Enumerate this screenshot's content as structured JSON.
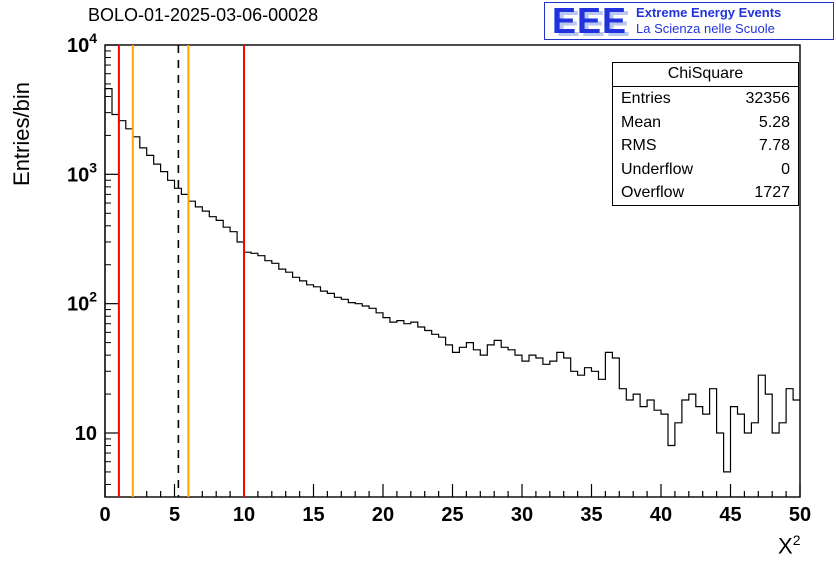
{
  "title": "BOLO-01-2025-03-06-00028",
  "logo": {
    "eee": "EEE",
    "line1": "Extreme Energy Events",
    "line2": "La Scienza nelle Scuole",
    "color": "#2233dd"
  },
  "stats": {
    "title": "ChiSquare",
    "rows": [
      {
        "label": "Entries",
        "value": "32356"
      },
      {
        "label": "Mean",
        "value": "5.28"
      },
      {
        "label": "RMS",
        "value": "7.78"
      },
      {
        "label": "Underflow",
        "value": "0"
      },
      {
        "label": "Overflow",
        "value": "1727"
      }
    ]
  },
  "chart_data": {
    "type": "bar",
    "subtype": "histogram-step-log",
    "title": "BOLO-01-2025-03-06-00028",
    "xlabel": "X²",
    "xlabel_base": "X",
    "xlabel_exp": "2",
    "ylabel": "Entries/bin",
    "x_range": [
      0,
      50
    ],
    "y_scale": "log",
    "ylim": [
      3.2,
      10000
    ],
    "grid": false,
    "legend": "none",
    "line_color": "#000000",
    "bin_start": 0,
    "bin_width": 0.5,
    "counts": [
      4600,
      2900,
      2600,
      2250,
      1950,
      1600,
      1400,
      1200,
      1050,
      900,
      780,
      700,
      620,
      560,
      520,
      470,
      440,
      390,
      360,
      300,
      250,
      245,
      235,
      215,
      205,
      185,
      175,
      160,
      150,
      140,
      135,
      125,
      120,
      112,
      108,
      102,
      100,
      96,
      92,
      85,
      78,
      72,
      74,
      70,
      72,
      66,
      62,
      58,
      55,
      48,
      42,
      46,
      50,
      44,
      40,
      48,
      52,
      46,
      44,
      40,
      36,
      40,
      38,
      34,
      36,
      42,
      38,
      30,
      28,
      32,
      30,
      26,
      42,
      38,
      22,
      18,
      20,
      16,
      18,
      15,
      14,
      8,
      12,
      18,
      20,
      16,
      14,
      22,
      10,
      5,
      16,
      14,
      10,
      12,
      28,
      20,
      10,
      12,
      22,
      18
    ],
    "xticks": [
      0,
      5,
      10,
      15,
      20,
      25,
      30,
      35,
      40,
      45,
      50
    ],
    "yticks": [
      {
        "value": 10,
        "base": "10",
        "exp": ""
      },
      {
        "value": 100,
        "base": "10",
        "exp": "2"
      },
      {
        "value": 1000,
        "base": "10",
        "exp": "3"
      },
      {
        "value": 10000,
        "base": "10",
        "exp": "4"
      }
    ],
    "marker_lines": [
      {
        "x": 1,
        "color": "#ff0000",
        "style": "solid",
        "name": "red-cut-low"
      },
      {
        "x": 2,
        "color": "#ffa500",
        "style": "solid",
        "name": "orange-cut-low"
      },
      {
        "x": 5.28,
        "color": "#000000",
        "style": "dashed",
        "name": "mean-line"
      },
      {
        "x": 6,
        "color": "#ffa500",
        "style": "solid",
        "name": "orange-cut-high"
      },
      {
        "x": 10,
        "color": "#ff0000",
        "style": "solid",
        "name": "red-cut-high"
      }
    ]
  }
}
